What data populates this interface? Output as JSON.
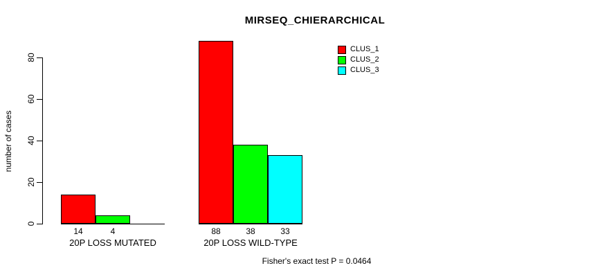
{
  "title": "MIRSEQ_CHIERARCHICAL",
  "y_axis_label": "number of cases",
  "footer": "Fisher's exact test P = 0.0464",
  "legend": {
    "items": [
      {
        "label": "CLUS_1",
        "color": "#FF0000"
      },
      {
        "label": "CLUS_2",
        "color": "#00FF00"
      },
      {
        "label": "CLUS_3",
        "color": "#00FFFF"
      }
    ]
  },
  "chart_data": {
    "type": "bar",
    "title": "MIRSEQ_CHIERARCHICAL",
    "categories": [
      "20P LOSS MUTATED",
      "20P LOSS WILD-TYPE"
    ],
    "series": [
      {
        "name": "CLUS_1",
        "color": "#FF0000",
        "values": [
          14,
          88
        ]
      },
      {
        "name": "CLUS_2",
        "color": "#00FF00",
        "values": [
          4,
          38
        ]
      },
      {
        "name": "CLUS_3",
        "color": "#00FFFF",
        "values": [
          0,
          33
        ]
      }
    ],
    "bar_value_labels": [
      [
        "14",
        "4",
        ""
      ],
      [
        "88",
        "38",
        "33"
      ]
    ],
    "xlabel": "",
    "ylabel": "number of cases",
    "ylim": [
      0,
      80
    ],
    "yticks": [
      0,
      20,
      40,
      60,
      80
    ],
    "grid": false,
    "legend_position": "top-right",
    "annotation": "Fisher's exact test P = 0.0464"
  }
}
